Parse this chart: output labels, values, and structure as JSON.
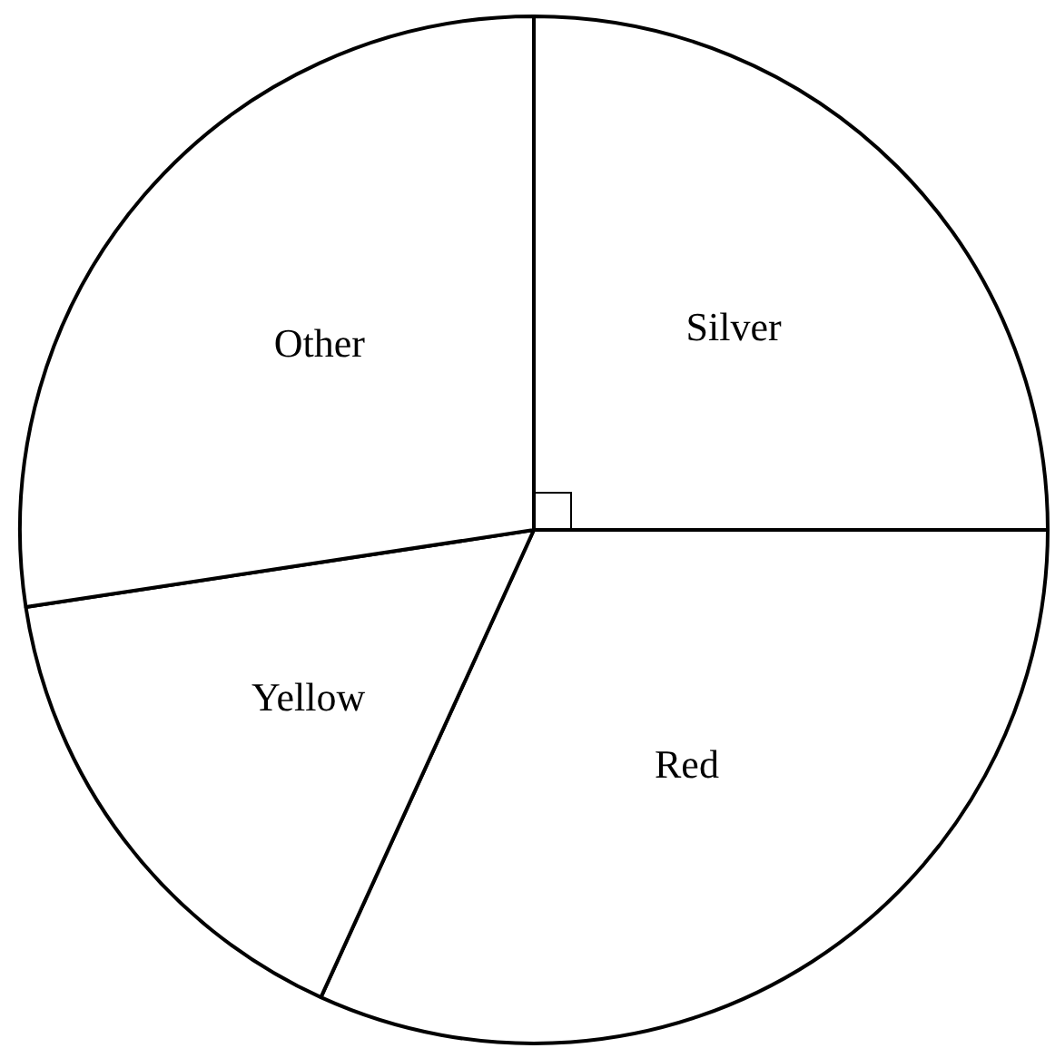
{
  "chart_data": {
    "type": "pie",
    "categories": [
      "Silver",
      "Red",
      "Yellow",
      "Other"
    ],
    "values": [
      25,
      31.8,
      15.8,
      27.4
    ],
    "colors": [
      "#ffffff",
      "#ffffff",
      "#ffffff",
      "#ffffff"
    ],
    "legend": false
  }
}
